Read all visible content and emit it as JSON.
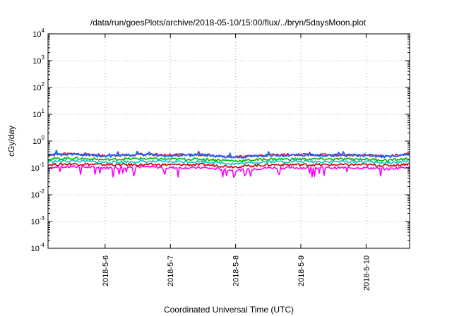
{
  "chart_data": {
    "type": "line",
    "title": "/data/run/goesPlots/archive/2018-05-10/15:00/flux/../bryn/5daysMoon.plot",
    "xlabel": "Coordinated Universal Time (UTC)",
    "ylabel": "cGy/day",
    "yscale": "log",
    "ylim": [
      0.0001,
      10000
    ],
    "yticks": [
      {
        "base": "10",
        "exp": "-4"
      },
      {
        "base": "10",
        "exp": "-3"
      },
      {
        "base": "10",
        "exp": "-2"
      },
      {
        "base": "10",
        "exp": "-1"
      },
      {
        "base": "10",
        "exp": "0"
      },
      {
        "base": "10",
        "exp": "1"
      },
      {
        "base": "10",
        "exp": "2"
      },
      {
        "base": "10",
        "exp": "3"
      },
      {
        "base": "10",
        "exp": "4"
      }
    ],
    "xlim": [
      "2018-05-05T03:00",
      "2018-05-10T16:00"
    ],
    "xticks": [
      {
        "label": "2018-5-6",
        "date": "2018-05-06"
      },
      {
        "label": "2018-5-7",
        "date": "2018-05-07"
      },
      {
        "label": "2018-5-8",
        "date": "2018-05-08"
      },
      {
        "label": "2018-5-9",
        "date": "2018-05-09"
      },
      {
        "label": "2018-5-10",
        "date": "2018-05-10"
      }
    ],
    "grid": true,
    "series": [
      {
        "color": "#ff00ff",
        "x": [
          "2018-05-05T03:00",
          "2018-05-05T12:00",
          "2018-05-06T00:00",
          "2018-05-06T12:00",
          "2018-05-07T00:00",
          "2018-05-07T12:00",
          "2018-05-08T00:00",
          "2018-05-08T12:00",
          "2018-05-09T00:00",
          "2018-05-09T12:00",
          "2018-05-10T00:00",
          "2018-05-10T08:00",
          "2018-05-10T16:00"
        ],
        "y": [
          0.1,
          0.11,
          0.1,
          0.11,
          0.1,
          0.1,
          0.08,
          0.1,
          0.1,
          0.1,
          0.1,
          0.09,
          0.11
        ]
      },
      {
        "color": "#c80000",
        "x": [
          "2018-05-05T03:00",
          "2018-05-05T12:00",
          "2018-05-06T00:00",
          "2018-05-06T12:00",
          "2018-05-07T00:00",
          "2018-05-07T12:00",
          "2018-05-08T00:00",
          "2018-05-08T12:00",
          "2018-05-09T00:00",
          "2018-05-09T12:00",
          "2018-05-10T00:00",
          "2018-05-10T08:00",
          "2018-05-10T16:00"
        ],
        "y": [
          0.13,
          0.14,
          0.13,
          0.13,
          0.13,
          0.13,
          0.11,
          0.13,
          0.13,
          0.13,
          0.13,
          0.12,
          0.14
        ]
      },
      {
        "color": "#00c8c8",
        "x": [
          "2018-05-05T03:00",
          "2018-05-05T12:00",
          "2018-05-06T00:00",
          "2018-05-06T12:00",
          "2018-05-07T00:00",
          "2018-05-07T12:00",
          "2018-05-08T00:00",
          "2018-05-08T12:00",
          "2018-05-09T00:00",
          "2018-05-09T12:00",
          "2018-05-10T00:00",
          "2018-05-10T08:00",
          "2018-05-10T16:00"
        ],
        "y": [
          0.17,
          0.18,
          0.16,
          0.17,
          0.17,
          0.17,
          0.14,
          0.17,
          0.17,
          0.17,
          0.17,
          0.15,
          0.18
        ]
      },
      {
        "color": "#00b400",
        "x": [
          "2018-05-05T03:00",
          "2018-05-05T12:00",
          "2018-05-06T00:00",
          "2018-05-06T12:00",
          "2018-05-07T00:00",
          "2018-05-07T12:00",
          "2018-05-08T00:00",
          "2018-05-08T12:00",
          "2018-05-09T00:00",
          "2018-05-09T12:00",
          "2018-05-10T00:00",
          "2018-05-10T08:00",
          "2018-05-10T16:00"
        ],
        "y": [
          0.21,
          0.23,
          0.2,
          0.22,
          0.21,
          0.21,
          0.18,
          0.21,
          0.21,
          0.21,
          0.21,
          0.19,
          0.22
        ]
      },
      {
        "color": "#ff0000",
        "x": [
          "2018-05-05T03:00",
          "2018-05-05T12:00",
          "2018-05-06T00:00",
          "2018-05-06T12:00",
          "2018-05-07T00:00",
          "2018-05-07T12:00",
          "2018-05-08T00:00",
          "2018-05-08T12:00",
          "2018-05-09T00:00",
          "2018-05-09T12:00",
          "2018-05-10T00:00",
          "2018-05-10T08:00",
          "2018-05-10T16:00"
        ],
        "y": [
          0.3,
          0.34,
          0.28,
          0.32,
          0.3,
          0.31,
          0.25,
          0.3,
          0.31,
          0.3,
          0.3,
          0.27,
          0.33
        ]
      },
      {
        "color": "#1e64ff",
        "x": [
          "2018-05-05T03:00",
          "2018-05-05T12:00",
          "2018-05-06T00:00",
          "2018-05-06T12:00",
          "2018-05-07T00:00",
          "2018-05-07T12:00",
          "2018-05-08T00:00",
          "2018-05-08T12:00",
          "2018-05-09T00:00",
          "2018-05-09T12:00",
          "2018-05-10T00:00",
          "2018-05-10T08:00",
          "2018-05-10T16:00"
        ],
        "y": [
          0.29,
          0.33,
          0.27,
          0.31,
          0.29,
          0.3,
          0.24,
          0.29,
          0.3,
          0.29,
          0.29,
          0.26,
          0.32
        ]
      }
    ]
  }
}
